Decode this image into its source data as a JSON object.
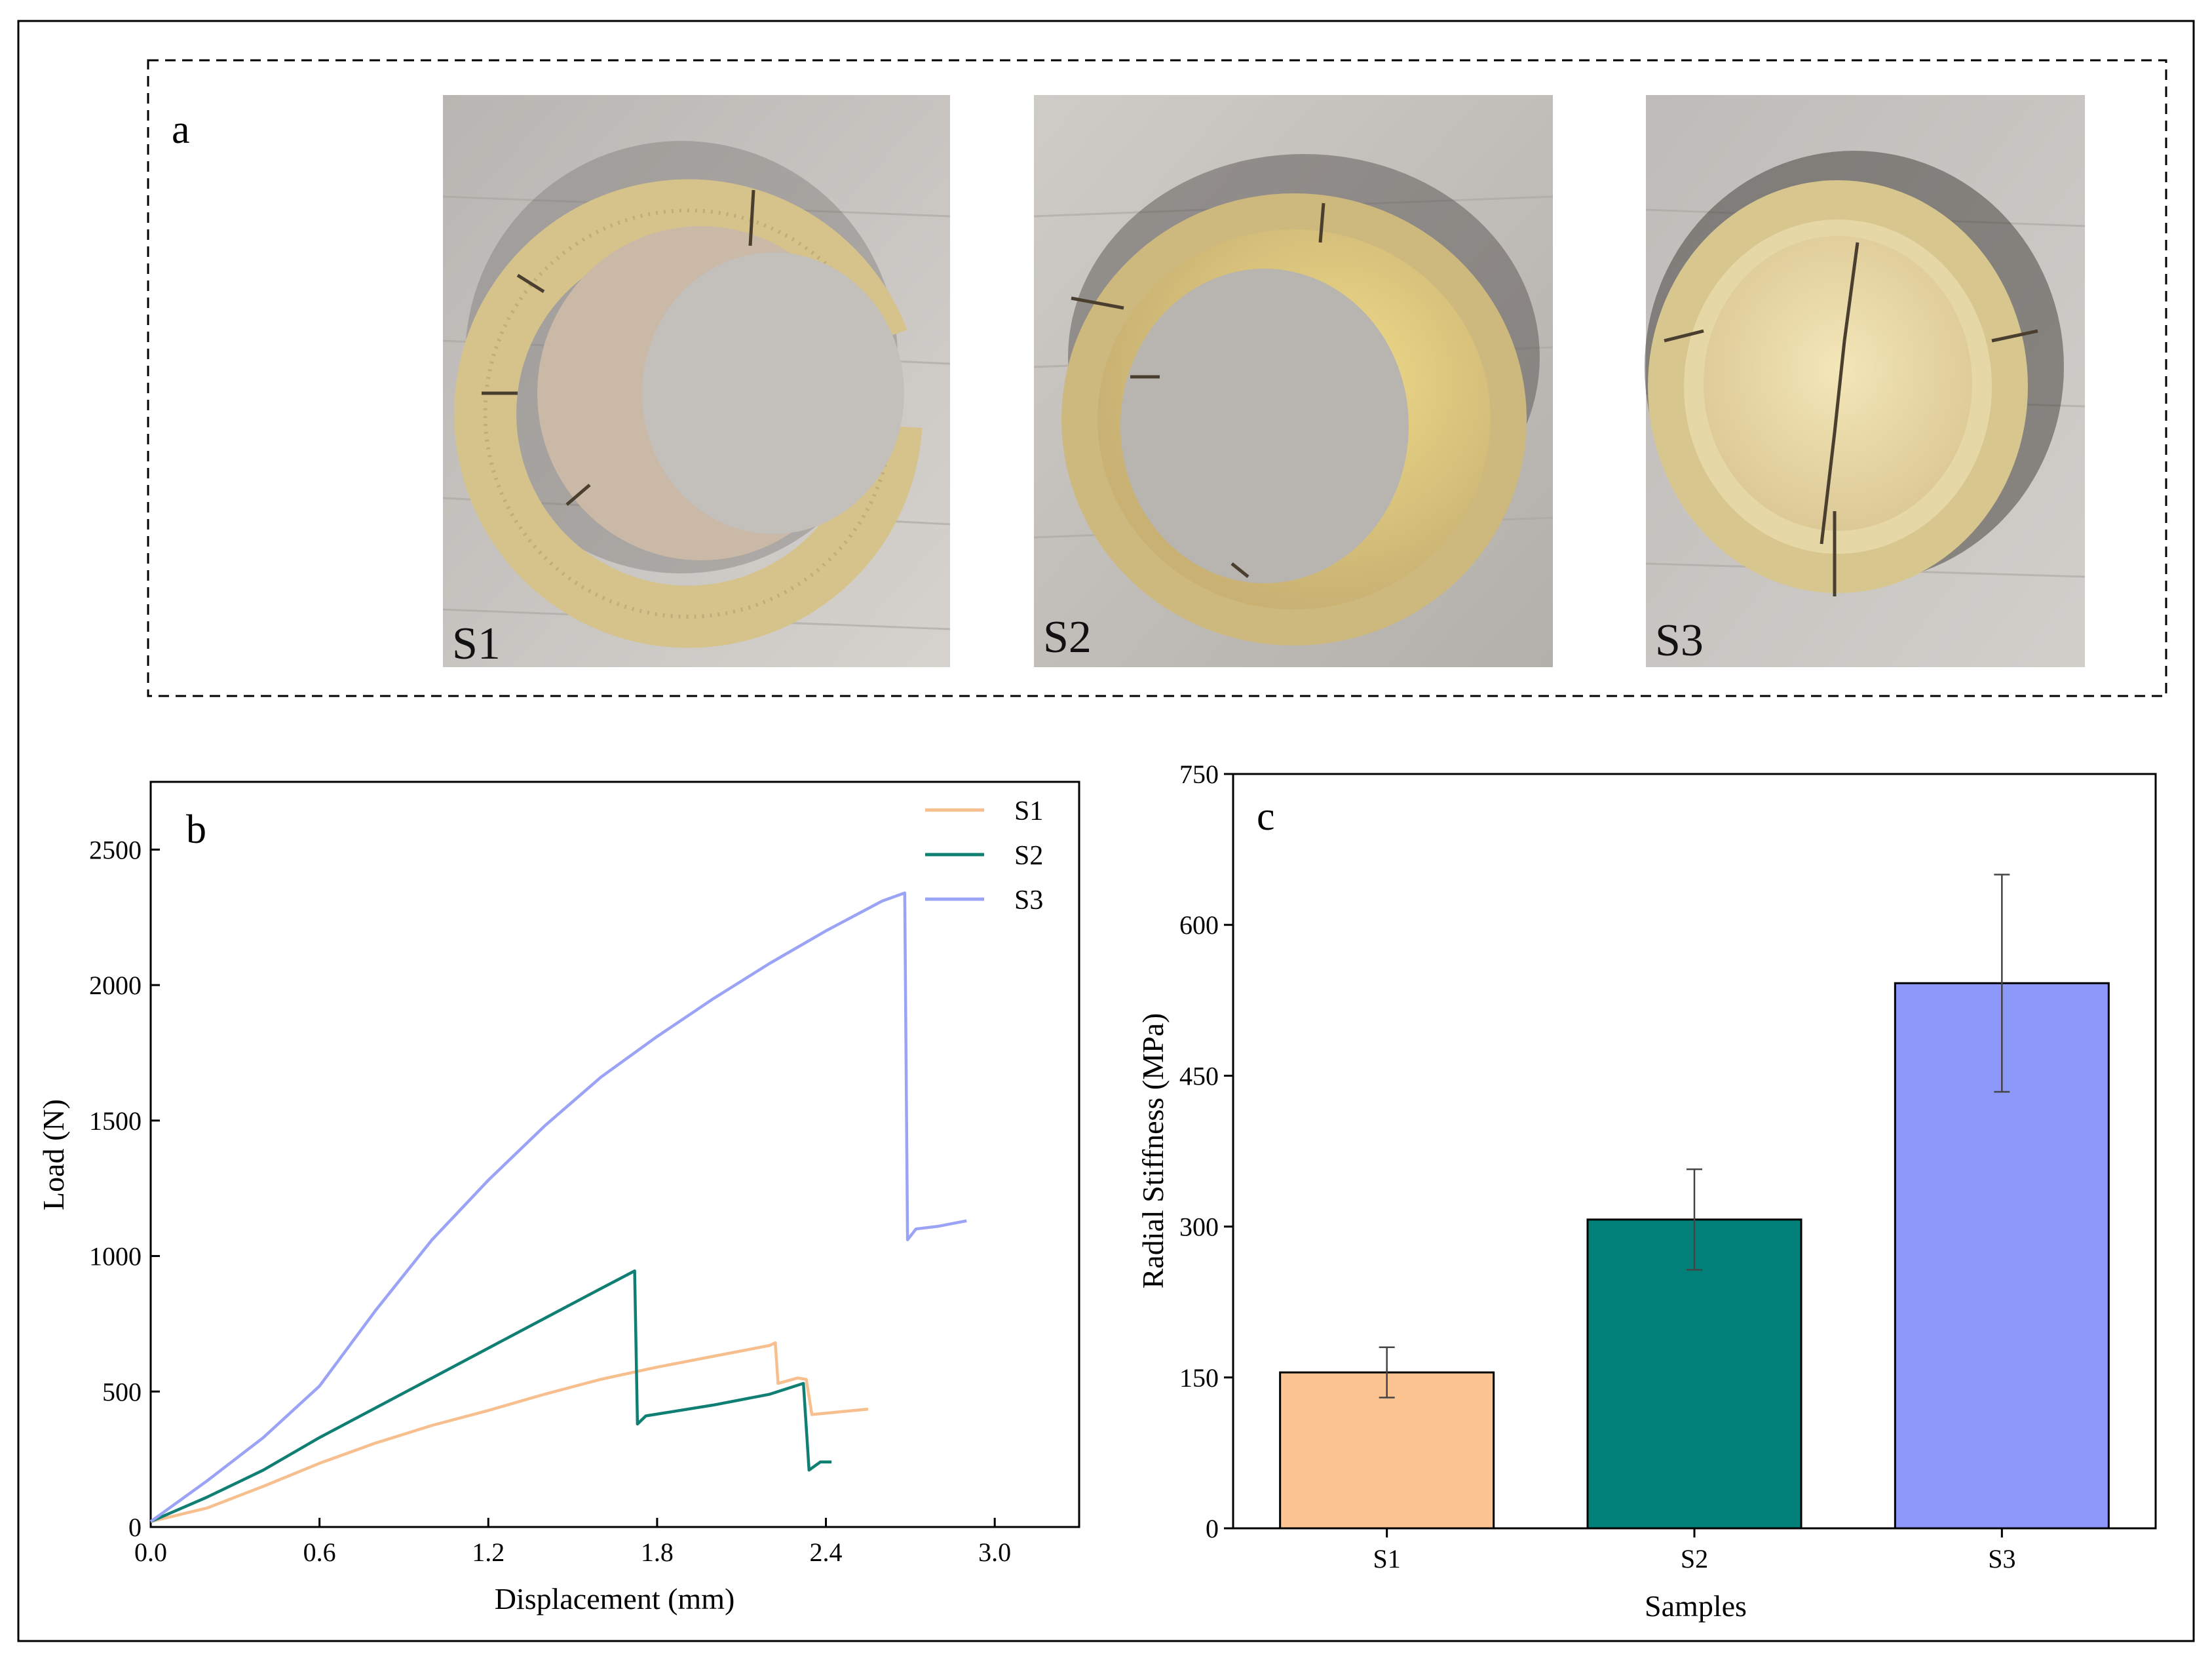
{
  "panel_a": {
    "letter": "a",
    "photos": [
      {
        "label": "S1",
        "state": "open-ring"
      },
      {
        "label": "S2",
        "state": "closed-ring-with-partial-core"
      },
      {
        "label": "S3",
        "state": "closed-ring-with-full-core"
      }
    ]
  },
  "chart_data": [
    {
      "type": "line",
      "panel": "b",
      "xlabel": "Displacement (mm)",
      "ylabel": "Load (N)",
      "xlim": [
        0,
        3.3
      ],
      "ylim": [
        0,
        2750
      ],
      "xticks": [
        0.0,
        0.6,
        1.2,
        1.8,
        2.4,
        3.0
      ],
      "xtick_labels": [
        "0.0",
        "0.6",
        "1.2",
        "1.8",
        "2.4",
        "3.0"
      ],
      "yticks": [
        0,
        500,
        1000,
        1500,
        2000,
        2500
      ],
      "ytick_labels": [
        "0",
        "500",
        "1000",
        "1500",
        "2000",
        "2500"
      ],
      "legend": "top-right",
      "series": [
        {
          "name": "S1",
          "color": "#F7BE8E",
          "points": [
            [
              0,
              20
            ],
            [
              0.2,
              70
            ],
            [
              0.4,
              150
            ],
            [
              0.6,
              235
            ],
            [
              0.8,
              310
            ],
            [
              1.0,
              375
            ],
            [
              1.2,
              430
            ],
            [
              1.4,
              490
            ],
            [
              1.6,
              545
            ],
            [
              1.8,
              590
            ],
            [
              2.0,
              630
            ],
            [
              2.2,
              670
            ],
            [
              2.22,
              680
            ],
            [
              2.23,
              530
            ],
            [
              2.3,
              550
            ],
            [
              2.33,
              545
            ],
            [
              2.35,
              415
            ],
            [
              2.45,
              425
            ],
            [
              2.55,
              435
            ]
          ]
        },
        {
          "name": "S2",
          "color": "#0F7F73",
          "points": [
            [
              0,
              20
            ],
            [
              0.2,
              110
            ],
            [
              0.4,
              210
            ],
            [
              0.6,
              330
            ],
            [
              0.8,
              440
            ],
            [
              1.0,
              550
            ],
            [
              1.2,
              660
            ],
            [
              1.4,
              770
            ],
            [
              1.6,
              880
            ],
            [
              1.72,
              945
            ],
            [
              1.73,
              380
            ],
            [
              1.76,
              410
            ],
            [
              2.0,
              450
            ],
            [
              2.2,
              490
            ],
            [
              2.32,
              530
            ],
            [
              2.34,
              210
            ],
            [
              2.38,
              240
            ],
            [
              2.42,
              240
            ]
          ]
        },
        {
          "name": "S3",
          "color": "#9AA3F5",
          "points": [
            [
              0,
              20
            ],
            [
              0.2,
              170
            ],
            [
              0.4,
              330
            ],
            [
              0.6,
              520
            ],
            [
              0.8,
              800
            ],
            [
              1.0,
              1060
            ],
            [
              1.2,
              1280
            ],
            [
              1.4,
              1480
            ],
            [
              1.6,
              1660
            ],
            [
              1.8,
              1810
            ],
            [
              2.0,
              1950
            ],
            [
              2.2,
              2080
            ],
            [
              2.4,
              2200
            ],
            [
              2.6,
              2310
            ],
            [
              2.68,
              2340
            ],
            [
              2.69,
              1060
            ],
            [
              2.72,
              1100
            ],
            [
              2.8,
              1110
            ],
            [
              2.9,
              1130
            ]
          ]
        }
      ]
    },
    {
      "type": "bar",
      "panel": "c",
      "xlabel": "Samples",
      "ylabel": "Radial Stiffness (MPa)",
      "categories": [
        "S1",
        "S2",
        "S3"
      ],
      "values": [
        155,
        307,
        542
      ],
      "error": [
        25,
        50,
        108
      ],
      "colors": [
        "#FBC490",
        "#008078",
        "#8C98FA"
      ],
      "ylim": [
        0,
        750
      ],
      "yticks": [
        0,
        150,
        300,
        450,
        600,
        750
      ],
      "ytick_labels": [
        "0",
        "150",
        "300",
        "450",
        "600",
        "750"
      ]
    }
  ]
}
